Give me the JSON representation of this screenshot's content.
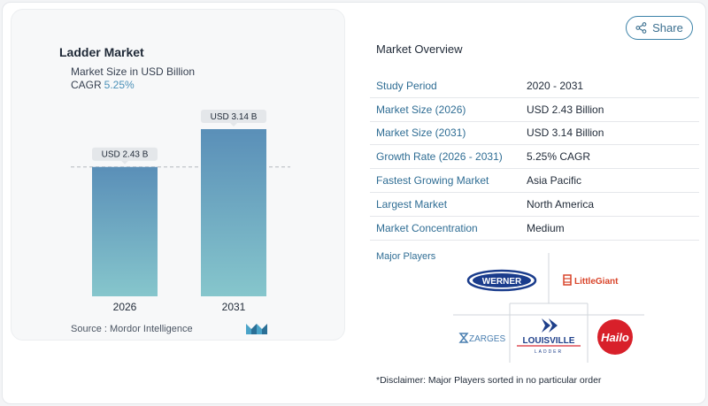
{
  "chart": {
    "title": "Ladder Market",
    "subtitle": "Market Size in USD Billion",
    "cagr_label": "CAGR",
    "cagr_value": "5.25%",
    "source": "Source :  Mordor Intelligence",
    "bar_color_top": "#5a8fb8",
    "bar_color_bottom": "#86c6cc"
  },
  "chart_data": {
    "type": "bar",
    "title": "Ladder Market",
    "subtitle": "Market Size in USD Billion",
    "categories": [
      "2026",
      "2031"
    ],
    "values": [
      2.43,
      3.14
    ],
    "data_labels": [
      "USD 2.43 B",
      "USD 3.14 B"
    ],
    "ylim": [
      0,
      3.14
    ],
    "grid": false,
    "reference_line": 2.43
  },
  "share": {
    "label": "Share"
  },
  "overview": {
    "title": "Market Overview",
    "rows": [
      {
        "label": "Study Period",
        "value": "2020 - 2031"
      },
      {
        "label": "Market Size (2026)",
        "value": "USD 2.43 Billion"
      },
      {
        "label": "Market Size (2031)",
        "value": "USD 3.14 Billion"
      },
      {
        "label": "Growth Rate (2026 - 2031)",
        "value": "5.25% CAGR"
      },
      {
        "label": "Fastest Growing Market",
        "value": "Asia Pacific"
      },
      {
        "label": "Largest Market",
        "value": "North America"
      },
      {
        "label": "Market Concentration",
        "value": "Medium"
      }
    ]
  },
  "players": {
    "title": "Major Players",
    "logos": {
      "werner": "WERNER",
      "littlegiant": "LittleGiant",
      "zarges": "ZARGES",
      "louisville": "LOUISVILLE",
      "louisville_sub": "LADDER",
      "hailo": "Hailo"
    }
  },
  "disclaimer": "*Disclaimer: Major Players sorted in no particular order"
}
